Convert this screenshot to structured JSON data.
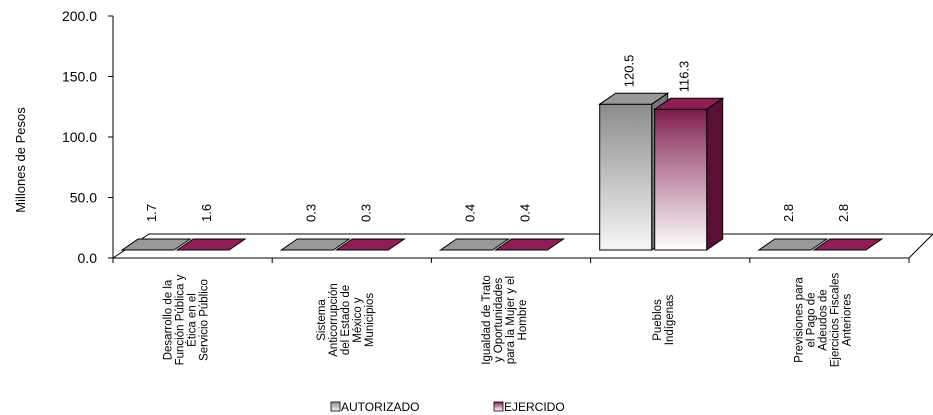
{
  "chart_data": {
    "type": "bar",
    "title": "",
    "xlabel": "",
    "ylabel": "Millones de Pesos",
    "ylim": [
      0,
      200
    ],
    "yticks": [
      "0.0",
      "50.0",
      "100.0",
      "150.0",
      "200.0"
    ],
    "categories": [
      [
        "Desarrollo de la",
        "Función Pública y",
        "Ética en el",
        "Servicio Público"
      ],
      [
        "Sistema",
        "Anticorrupción",
        "del Estado de",
        "México y",
        "Municipios"
      ],
      [
        "Igualdad de Trato",
        "y Oportunidades",
        "para la Mujer y el",
        "Hombre"
      ],
      [
        "Pueblos",
        "Indígenas"
      ],
      [
        "Previsiones para",
        "el Pago de",
        "Adeudos de",
        "Ejercicios Fiscales",
        "Anteriores"
      ]
    ],
    "series": [
      {
        "name": "AUTORIZADO",
        "values": [
          1.7,
          0.3,
          0.4,
          120.5,
          2.8
        ],
        "labels": [
          "1.7",
          "0.3",
          "0.4",
          "120.5",
          "2.8"
        ]
      },
      {
        "name": "EJERCIDO",
        "values": [
          1.6,
          0.3,
          0.4,
          116.3,
          2.8
        ],
        "labels": [
          "1.6",
          "0.3",
          "0.4",
          "116.3",
          "2.8"
        ]
      }
    ],
    "colors": {
      "autorizado_dark": "#8c8c8c",
      "autorizado_light": "#f6f6f6",
      "ejercido_front": "#7a1b49",
      "ejercido_light": "#ffffff",
      "ejercido_top": "#8e1f55",
      "ejercido_side": "#5c0f35"
    },
    "grid": false,
    "legend_position": "bottom"
  }
}
